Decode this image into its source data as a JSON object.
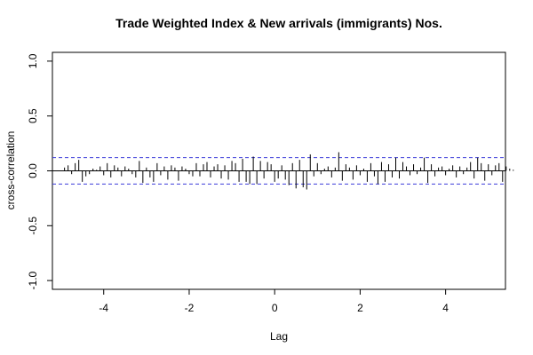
{
  "chart_data": {
    "type": "bar",
    "title": "Trade Weighted Index & New arrivals (immigrants) Nos.",
    "xlabel": "Lag",
    "ylabel": "cross-correlation",
    "xlim": [
      -5.2,
      5.4
    ],
    "ylim": [
      -1.08,
      1.08
    ],
    "xticks": [
      -4,
      -2,
      0,
      2,
      4
    ],
    "yticks": [
      -1.0,
      -0.5,
      0.0,
      0.5,
      1.0
    ],
    "xtick_labels": [
      "-4",
      "-2",
      "0",
      "2",
      "4"
    ],
    "ytick_labels": [
      "-1.0",
      "-0.5",
      "0.0",
      "0.5",
      "1.0"
    ],
    "confidence_bounds": [
      0.12,
      -0.12
    ],
    "lag_start": -4.9167,
    "lag_step": 0.08333,
    "values": [
      0.03,
      0.05,
      -0.03,
      0.07,
      0.1,
      -0.1,
      -0.05,
      -0.03,
      0.02,
      0.01,
      0.04,
      -0.04,
      0.07,
      -0.06,
      0.05,
      0.03,
      -0.05,
      0.04,
      0.02,
      -0.03,
      -0.06,
      0.09,
      -0.11,
      0.03,
      -0.06,
      -0.1,
      0.07,
      -0.04,
      0.04,
      -0.08,
      0.05,
      0.03,
      -0.09,
      0.04,
      0.02,
      -0.03,
      -0.05,
      0.07,
      -0.05,
      0.06,
      0.08,
      -0.06,
      0.04,
      0.06,
      -0.07,
      0.05,
      -0.08,
      0.09,
      0.07,
      -0.1,
      0.11,
      -0.1,
      -0.12,
      0.13,
      -0.12,
      0.09,
      -0.07,
      0.08,
      0.06,
      -0.1,
      -0.07,
      0.05,
      -0.08,
      -0.13,
      0.07,
      -0.16,
      0.1,
      -0.15,
      -0.17,
      0.15,
      -0.05,
      0.07,
      -0.03,
      0.02,
      0.04,
      -0.06,
      0.03,
      0.17,
      -0.09,
      0.06,
      0.03,
      -0.08,
      0.05,
      -0.04,
      0.02,
      -0.1,
      0.07,
      -0.05,
      -0.12,
      0.08,
      -0.1,
      0.06,
      -0.06,
      0.12,
      -0.07,
      0.08,
      0.04,
      -0.04,
      0.06,
      -0.03,
      0.03,
      0.12,
      -0.11,
      0.06,
      -0.05,
      0.03,
      0.04,
      -0.04,
      0.02,
      0.05,
      -0.06,
      0.04,
      -0.03,
      0.03,
      0.08,
      -0.07,
      0.12,
      0.07,
      -0.09,
      0.06,
      -0.04,
      0.05,
      0.07,
      -0.1,
      0.04,
      0.02,
      0.01
    ]
  }
}
